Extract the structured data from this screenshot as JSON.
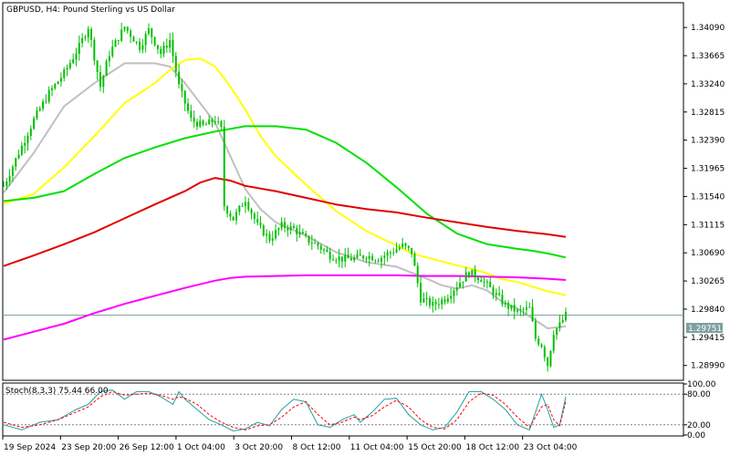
{
  "colors": {
    "background": "#ffffff",
    "frame": "#000000",
    "candle": "#00c000",
    "ma_gray": "#c0c0c0",
    "ma_yellow": "#ffff00",
    "ma_green": "#00e000",
    "ma_red": "#e00000",
    "ma_magenta": "#ff00ff",
    "current_price_line": "#7fa0a0",
    "stoch_main": "#20a0a0",
    "stoch_signal": "#ff0000"
  },
  "chart_data": [
    {
      "type": "line",
      "title": "GBPUSD, H4:  Pound Sterling vs US Dollar",
      "ylim": [
        1.2878,
        1.3445
      ],
      "y_ticks": [
        "1.34090",
        "1.33665",
        "1.33240",
        "1.32815",
        "1.32390",
        "1.31965",
        "1.31540",
        "1.31115",
        "1.30690",
        "1.30265",
        "1.29840",
        "1.29415",
        "1.28990"
      ],
      "y_tick_values": [
        1.3409,
        1.33665,
        1.3324,
        1.32815,
        1.3239,
        1.31965,
        1.3154,
        1.31115,
        1.3069,
        1.30265,
        1.2984,
        1.29415,
        1.2899
      ],
      "x_tick_labels": [
        "19 Sep 2024",
        "23 Sep 20:00",
        "26 Sep 12:00",
        "1 Oct 04:00",
        "3 Oct 20:00",
        "8 Oct 12:00",
        "11 Oct 04:00",
        "15 Oct 20:00",
        "18 Oct 12:00",
        "23 Oct 04:00"
      ],
      "current_price": 1.29751,
      "current_price_label": "1.29751",
      "price_path": [
        [
          0,
          1.317
        ],
        [
          5,
          1.322
        ],
        [
          10,
          1.327
        ],
        [
          15,
          1.331
        ],
        [
          20,
          1.334
        ],
        [
          25,
          1.338
        ],
        [
          28,
          1.341
        ],
        [
          32,
          1.332
        ],
        [
          35,
          1.337
        ],
        [
          40,
          1.341
        ],
        [
          45,
          1.338
        ],
        [
          48,
          1.3405
        ],
        [
          52,
          1.337
        ],
        [
          55,
          1.339
        ],
        [
          58,
          1.332
        ],
        [
          62,
          1.327
        ],
        [
          66,
          1.326
        ],
        [
          70,
          1.327
        ],
        [
          72,
          1.3255
        ],
        [
          73,
          1.314
        ],
        [
          76,
          1.312
        ],
        [
          80,
          1.315
        ],
        [
          84,
          1.311
        ],
        [
          88,
          1.309
        ],
        [
          92,
          1.311
        ],
        [
          96,
          1.3105
        ],
        [
          100,
          1.309
        ],
        [
          104,
          1.308
        ],
        [
          108,
          1.3065
        ],
        [
          112,
          1.306
        ],
        [
          116,
          1.306
        ],
        [
          120,
          1.3065
        ],
        [
          124,
          1.306
        ],
        [
          128,
          1.307
        ],
        [
          132,
          1.308
        ],
        [
          135,
          1.307
        ],
        [
          138,
          1.3
        ],
        [
          142,
          1.299
        ],
        [
          146,
          1.3
        ],
        [
          150,
          1.302
        ],
        [
          154,
          1.304
        ],
        [
          158,
          1.303
        ],
        [
          162,
          1.301
        ],
        [
          166,
          1.299
        ],
        [
          170,
          1.298
        ],
        [
          174,
          1.2985
        ],
        [
          176,
          1.294
        ],
        [
          178,
          1.293
        ],
        [
          180,
          1.29
        ],
        [
          182,
          1.295
        ],
        [
          184,
          1.296
        ],
        [
          186,
          1.2975
        ]
      ],
      "series": [
        {
          "color_key": "ma_gray",
          "points": [
            [
              0,
              1.316
            ],
            [
              10,
              1.322
            ],
            [
              20,
              1.329
            ],
            [
              30,
              1.3325
            ],
            [
              40,
              1.3355
            ],
            [
              50,
              1.3355
            ],
            [
              55,
              1.335
            ],
            [
              60,
              1.3325
            ],
            [
              65,
              1.3295
            ],
            [
              70,
              1.3265
            ],
            [
              75,
              1.3215
            ],
            [
              80,
              1.3165
            ],
            [
              85,
              1.3135
            ],
            [
              90,
              1.3115
            ],
            [
              100,
              1.3095
            ],
            [
              110,
              1.307
            ],
            [
              120,
              1.3055
            ],
            [
              130,
              1.3048
            ],
            [
              140,
              1.303
            ],
            [
              145,
              1.302
            ],
            [
              150,
              1.3015
            ],
            [
              155,
              1.302
            ],
            [
              160,
              1.3012
            ],
            [
              165,
              1.2995
            ],
            [
              170,
              1.2985
            ],
            [
              175,
              1.297
            ],
            [
              180,
              1.2955
            ],
            [
              186,
              1.2958
            ]
          ]
        },
        {
          "color_key": "ma_yellow",
          "points": [
            [
              0,
              1.3143
            ],
            [
              10,
              1.3158
            ],
            [
              20,
              1.3198
            ],
            [
              30,
              1.3245
            ],
            [
              40,
              1.3295
            ],
            [
              50,
              1.3325
            ],
            [
              55,
              1.3345
            ],
            [
              60,
              1.336
            ],
            [
              65,
              1.3362
            ],
            [
              70,
              1.335
            ],
            [
              75,
              1.332
            ],
            [
              80,
              1.3285
            ],
            [
              85,
              1.3245
            ],
            [
              90,
              1.3215
            ],
            [
              100,
              1.3172
            ],
            [
              110,
              1.3132
            ],
            [
              120,
              1.3102
            ],
            [
              130,
              1.308
            ],
            [
              135,
              1.3068
            ],
            [
              140,
              1.3062
            ],
            [
              150,
              1.305
            ],
            [
              155,
              1.3045
            ],
            [
              160,
              1.3038
            ],
            [
              165,
              1.3029
            ],
            [
              170,
              1.3025
            ],
            [
              175,
              1.3018
            ],
            [
              180,
              1.3011
            ],
            [
              186,
              1.3005
            ]
          ]
        },
        {
          "color_key": "ma_green",
          "points": [
            [
              0,
              1.3147
            ],
            [
              10,
              1.3152
            ],
            [
              20,
              1.3162
            ],
            [
              30,
              1.3188
            ],
            [
              40,
              1.3212
            ],
            [
              50,
              1.3228
            ],
            [
              60,
              1.3242
            ],
            [
              70,
              1.3252
            ],
            [
              80,
              1.326
            ],
            [
              90,
              1.326
            ],
            [
              100,
              1.3255
            ],
            [
              110,
              1.3235
            ],
            [
              120,
              1.3205
            ],
            [
              130,
              1.3168
            ],
            [
              140,
              1.3128
            ],
            [
              150,
              1.3098
            ],
            [
              160,
              1.3082
            ],
            [
              170,
              1.3075
            ],
            [
              175,
              1.3072
            ],
            [
              180,
              1.3068
            ],
            [
              186,
              1.3062
            ]
          ]
        },
        {
          "color_key": "ma_red",
          "points": [
            [
              0,
              1.3049
            ],
            [
              10,
              1.3065
            ],
            [
              20,
              1.3082
            ],
            [
              30,
              1.31
            ],
            [
              40,
              1.3121
            ],
            [
              50,
              1.3142
            ],
            [
              60,
              1.3162
            ],
            [
              65,
              1.3175
            ],
            [
              70,
              1.3182
            ],
            [
              75,
              1.3178
            ],
            [
              80,
              1.317
            ],
            [
              90,
              1.3162
            ],
            [
              100,
              1.3152
            ],
            [
              110,
              1.3142
            ],
            [
              120,
              1.3135
            ],
            [
              130,
              1.313
            ],
            [
              140,
              1.3122
            ],
            [
              150,
              1.3115
            ],
            [
              160,
              1.3108
            ],
            [
              170,
              1.3102
            ],
            [
              180,
              1.3097
            ],
            [
              186,
              1.3093
            ]
          ]
        },
        {
          "color_key": "ma_magenta",
          "points": [
            [
              0,
              1.2938
            ],
            [
              10,
              1.295
            ],
            [
              20,
              1.2962
            ],
            [
              30,
              1.2978
            ],
            [
              40,
              1.2992
            ],
            [
              50,
              1.3004
            ],
            [
              60,
              1.3016
            ],
            [
              70,
              1.3027
            ],
            [
              75,
              1.3031
            ],
            [
              80,
              1.3033
            ],
            [
              90,
              1.3034
            ],
            [
              100,
              1.3035
            ],
            [
              110,
              1.3035
            ],
            [
              120,
              1.3035
            ],
            [
              130,
              1.3035
            ],
            [
              140,
              1.3034
            ],
            [
              150,
              1.3034
            ],
            [
              160,
              1.3033
            ],
            [
              170,
              1.3032
            ],
            [
              180,
              1.303
            ],
            [
              186,
              1.3028
            ]
          ]
        }
      ]
    },
    {
      "type": "line",
      "title": "Stoch(8,3,3) 75.44 66.00",
      "ylim": [
        0,
        100
      ],
      "y_ticks": [
        "100.00",
        "80.00",
        "20.00",
        "0.00"
      ],
      "y_tick_values": [
        100,
        80,
        20,
        0
      ],
      "levels": [
        80,
        20
      ],
      "series": [
        {
          "color_key": "stoch_main",
          "points": [
            [
              0,
              20
            ],
            [
              6,
              10
            ],
            [
              12,
              25
            ],
            [
              18,
              30
            ],
            [
              24,
              50
            ],
            [
              28,
              60
            ],
            [
              32,
              85
            ],
            [
              36,
              88
            ],
            [
              40,
              70
            ],
            [
              44,
              85
            ],
            [
              48,
              85
            ],
            [
              52,
              75
            ],
            [
              56,
              60
            ],
            [
              58,
              85
            ],
            [
              60,
              70
            ],
            [
              64,
              50
            ],
            [
              68,
              30
            ],
            [
              72,
              20
            ],
            [
              76,
              8
            ],
            [
              80,
              12
            ],
            [
              84,
              25
            ],
            [
              88,
              18
            ],
            [
              92,
              50
            ],
            [
              96,
              70
            ],
            [
              100,
              65
            ],
            [
              104,
              20
            ],
            [
              108,
              15
            ],
            [
              112,
              30
            ],
            [
              116,
              40
            ],
            [
              118,
              25
            ],
            [
              122,
              45
            ],
            [
              126,
              70
            ],
            [
              130,
              72
            ],
            [
              134,
              40
            ],
            [
              138,
              20
            ],
            [
              142,
              10
            ],
            [
              146,
              15
            ],
            [
              150,
              45
            ],
            [
              154,
              85
            ],
            [
              158,
              85
            ],
            [
              162,
              70
            ],
            [
              166,
              50
            ],
            [
              170,
              20
            ],
            [
              174,
              10
            ],
            [
              178,
              80
            ],
            [
              180,
              50
            ],
            [
              182,
              15
            ],
            [
              184,
              20
            ],
            [
              186,
              75
            ]
          ]
        },
        {
          "color_key": "stoch_signal",
          "points": [
            [
              0,
              25
            ],
            [
              6,
              15
            ],
            [
              12,
              20
            ],
            [
              18,
              30
            ],
            [
              24,
              45
            ],
            [
              28,
              55
            ],
            [
              32,
              75
            ],
            [
              36,
              85
            ],
            [
              40,
              78
            ],
            [
              44,
              80
            ],
            [
              48,
              82
            ],
            [
              52,
              78
            ],
            [
              56,
              70
            ],
            [
              58,
              75
            ],
            [
              60,
              72
            ],
            [
              64,
              60
            ],
            [
              68,
              40
            ],
            [
              72,
              25
            ],
            [
              76,
              15
            ],
            [
              80,
              10
            ],
            [
              84,
              18
            ],
            [
              88,
              20
            ],
            [
              92,
              35
            ],
            [
              96,
              55
            ],
            [
              100,
              65
            ],
            [
              104,
              40
            ],
            [
              108,
              20
            ],
            [
              112,
              25
            ],
            [
              116,
              35
            ],
            [
              118,
              30
            ],
            [
              122,
              38
            ],
            [
              126,
              55
            ],
            [
              130,
              68
            ],
            [
              134,
              55
            ],
            [
              138,
              30
            ],
            [
              142,
              15
            ],
            [
              146,
              12
            ],
            [
              150,
              30
            ],
            [
              154,
              65
            ],
            [
              158,
              82
            ],
            [
              162,
              78
            ],
            [
              166,
              60
            ],
            [
              170,
              35
            ],
            [
              174,
              15
            ],
            [
              178,
              55
            ],
            [
              180,
              60
            ],
            [
              182,
              30
            ],
            [
              184,
              18
            ],
            [
              186,
              66
            ]
          ]
        }
      ]
    }
  ]
}
